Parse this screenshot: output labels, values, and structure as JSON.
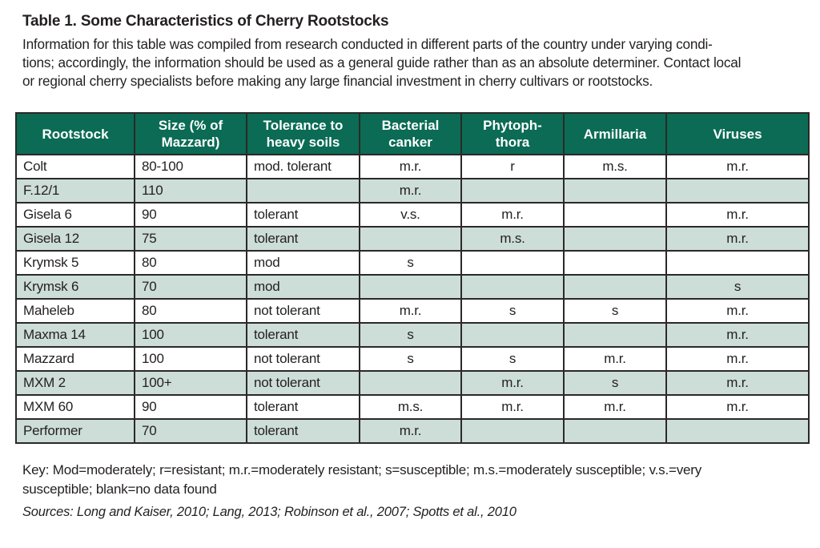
{
  "page": {
    "title": "Table 1. Some Characteristics of Cherry Rootstocks",
    "intro_lines": [
      "Information for this table was compiled from research conducted in different parts of the country under varying condi-",
      "tions; accordingly, the information should be used as a general guide rather than as an absolute determiner. Contact local",
      "or regional cherry specialists before making any large financial investment in cherry cultivars or rootstocks."
    ],
    "key_lines": [
      "Key: Mod=moderately; r=resistant; m.r.=moderately resistant; s=susceptible; m.s.=moderately susceptible; v.s.=very",
      "susceptible; blank=no data found"
    ],
    "sources": "Sources: Long and Kaiser, 2010; Lang, 2013; Robinson et al., 2007; Spotts et al., 2010"
  },
  "colors": {
    "header_bg": "#0b6b54",
    "header_text": "#ffffff",
    "row_shaded": "#cdddd8",
    "border": "#2b2928",
    "text": "#231f20"
  },
  "table": {
    "columns": [
      {
        "label": "Rootstock"
      },
      {
        "label": "Size (% of\nMazzard)"
      },
      {
        "label": "Tolerance to\nheavy soils"
      },
      {
        "label": "Bacterial\ncanker"
      },
      {
        "label": "Phytoph-\nthora"
      },
      {
        "label": "Armillaria"
      },
      {
        "label": "Viruses"
      }
    ],
    "rows": [
      {
        "shaded": false,
        "cells": [
          "Colt",
          "80-100",
          "mod. tolerant",
          "m.r.",
          "r",
          "m.s.",
          "m.r."
        ]
      },
      {
        "shaded": true,
        "cells": [
          "F.12/1",
          "110",
          "",
          "m.r.",
          "",
          "",
          ""
        ]
      },
      {
        "shaded": false,
        "cells": [
          "Gisela 6",
          "90",
          "tolerant",
          "v.s.",
          "m.r.",
          "",
          "m.r."
        ]
      },
      {
        "shaded": true,
        "cells": [
          "Gisela 12",
          "75",
          "tolerant",
          "",
          "m.s.",
          "",
          "m.r."
        ]
      },
      {
        "shaded": false,
        "cells": [
          "Krymsk 5",
          "80",
          "mod",
          "s",
          "",
          "",
          ""
        ]
      },
      {
        "shaded": true,
        "cells": [
          "Krymsk 6",
          "70",
          "mod",
          "",
          "",
          "",
          "s"
        ]
      },
      {
        "shaded": false,
        "cells": [
          "Maheleb",
          "80",
          "not tolerant",
          "m.r.",
          "s",
          "s",
          "m.r."
        ]
      },
      {
        "shaded": true,
        "cells": [
          "Maxma 14",
          "100",
          "tolerant",
          "s",
          "",
          "",
          "m.r."
        ]
      },
      {
        "shaded": false,
        "cells": [
          "Mazzard",
          "100",
          "not tolerant",
          "s",
          "s",
          "m.r.",
          "m.r."
        ]
      },
      {
        "shaded": true,
        "cells": [
          "MXM 2",
          "100+",
          "not tolerant",
          "",
          "m.r.",
          "s",
          "m.r."
        ]
      },
      {
        "shaded": false,
        "cells": [
          "MXM 60",
          "90",
          "tolerant",
          "m.s.",
          "m.r.",
          "m.r.",
          "m.r."
        ]
      },
      {
        "shaded": true,
        "cells": [
          "Performer",
          "70",
          "tolerant",
          "m.r.",
          "",
          "",
          ""
        ]
      }
    ]
  }
}
